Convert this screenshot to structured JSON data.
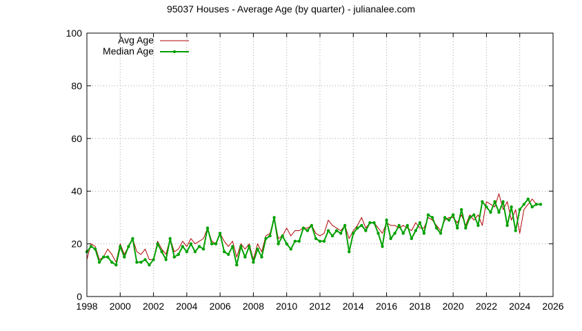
{
  "chart_data": {
    "type": "line",
    "title": "95037 Houses - Average Age (by quarter) - julianalee.com",
    "xlabel": "",
    "ylabel": "",
    "xlim": [
      1998,
      2026
    ],
    "ylim": [
      0,
      100
    ],
    "x_ticks": [
      "1998",
      "2000",
      "2002",
      "2004",
      "2006",
      "2008",
      "2010",
      "2012",
      "2014",
      "2016",
      "2018",
      "2020",
      "2022",
      "2024",
      "2026"
    ],
    "y_ticks": [
      "0",
      "20",
      "40",
      "60",
      "80",
      "100"
    ],
    "grid": true,
    "legend_position": "top-left",
    "series": [
      {
        "name": "Avg Age",
        "color": "#b00000",
        "markers": false,
        "x": [
          1998.0,
          1998.25,
          1998.5,
          1998.75,
          1999.0,
          1999.25,
          1999.5,
          1999.75,
          2000.0,
          2000.25,
          2000.5,
          2000.75,
          2001.0,
          2001.25,
          2001.5,
          2001.75,
          2002.0,
          2002.25,
          2002.5,
          2002.75,
          2003.0,
          2003.25,
          2003.5,
          2003.75,
          2004.0,
          2004.25,
          2004.5,
          2004.75,
          2005.0,
          2005.25,
          2005.5,
          2005.75,
          2006.0,
          2006.25,
          2006.5,
          2006.75,
          2007.0,
          2007.25,
          2007.5,
          2007.75,
          2008.0,
          2008.25,
          2008.5,
          2008.75,
          2009.0,
          2009.25,
          2009.5,
          2009.75,
          2010.0,
          2010.25,
          2010.5,
          2010.75,
          2011.0,
          2011.25,
          2011.5,
          2011.75,
          2012.0,
          2012.25,
          2012.5,
          2012.75,
          2013.0,
          2013.25,
          2013.5,
          2013.75,
          2014.0,
          2014.25,
          2014.5,
          2014.75,
          2015.0,
          2015.25,
          2015.5,
          2015.75,
          2016.0,
          2016.25,
          2016.5,
          2016.75,
          2017.0,
          2017.25,
          2017.5,
          2017.75,
          2018.0,
          2018.25,
          2018.5,
          2018.75,
          2019.0,
          2019.25,
          2019.5,
          2019.75,
          2020.0,
          2020.25,
          2020.5,
          2020.75,
          2021.0,
          2021.25,
          2021.5,
          2021.75,
          2022.0,
          2022.25,
          2022.5,
          2022.75,
          2023.0,
          2023.25,
          2023.5,
          2023.75,
          2024.0,
          2024.25,
          2024.5,
          2024.75,
          2025.0,
          2025.25
        ],
        "values": [
          14,
          20,
          19,
          14,
          15,
          18,
          16,
          13,
          20,
          16,
          19,
          22,
          17,
          16,
          18,
          14,
          14,
          21,
          18,
          16,
          22,
          17,
          18,
          21,
          19,
          22,
          20,
          21,
          22,
          26,
          21,
          20,
          24,
          21,
          19,
          21,
          15,
          20,
          18,
          20,
          14,
          20,
          17,
          23,
          24,
          30,
          22,
          23,
          26,
          23,
          25,
          25,
          26,
          26,
          27,
          24,
          23,
          24,
          29,
          27,
          26,
          25,
          27,
          22,
          25,
          27,
          30,
          26,
          28,
          28,
          26,
          24,
          28,
          27,
          27,
          26,
          27,
          26,
          25,
          28,
          26,
          26,
          30,
          29,
          27,
          25,
          29,
          30,
          30,
          28,
          31,
          27,
          31,
          29,
          31,
          27,
          36,
          35,
          34,
          39,
          33,
          36,
          29,
          33,
          24,
          33,
          35,
          37,
          35,
          35
        ]
      },
      {
        "name": "Median Age",
        "color": "#00a000",
        "markers": true,
        "x": [
          1998.0,
          1998.25,
          1998.5,
          1998.75,
          1999.0,
          1999.25,
          1999.5,
          1999.75,
          2000.0,
          2000.25,
          2000.5,
          2000.75,
          2001.0,
          2001.25,
          2001.5,
          2001.75,
          2002.0,
          2002.25,
          2002.5,
          2002.75,
          2003.0,
          2003.25,
          2003.5,
          2003.75,
          2004.0,
          2004.25,
          2004.5,
          2004.75,
          2005.0,
          2005.25,
          2005.5,
          2005.75,
          2006.0,
          2006.25,
          2006.5,
          2006.75,
          2007.0,
          2007.25,
          2007.5,
          2007.75,
          2008.0,
          2008.25,
          2008.5,
          2008.75,
          2009.0,
          2009.25,
          2009.5,
          2009.75,
          2010.0,
          2010.25,
          2010.5,
          2010.75,
          2011.0,
          2011.25,
          2011.5,
          2011.75,
          2012.0,
          2012.25,
          2012.5,
          2012.75,
          2013.0,
          2013.25,
          2013.5,
          2013.75,
          2014.0,
          2014.25,
          2014.5,
          2014.75,
          2015.0,
          2015.25,
          2015.5,
          2015.75,
          2016.0,
          2016.25,
          2016.5,
          2016.75,
          2017.0,
          2017.25,
          2017.5,
          2017.75,
          2018.0,
          2018.25,
          2018.5,
          2018.75,
          2019.0,
          2019.25,
          2019.5,
          2019.75,
          2020.0,
          2020.25,
          2020.5,
          2020.75,
          2021.0,
          2021.25,
          2021.5,
          2021.75,
          2022.0,
          2022.25,
          2022.5,
          2022.75,
          2023.0,
          2023.25,
          2023.5,
          2023.75,
          2024.0,
          2024.25,
          2024.5,
          2024.75,
          2025.0,
          2025.25
        ],
        "values": [
          17,
          19,
          18,
          13,
          15,
          15,
          13,
          12,
          19,
          15,
          19,
          22,
          13,
          13,
          14,
          12,
          14,
          20,
          17,
          14,
          22,
          15,
          16,
          19,
          17,
          20,
          17,
          19,
          18,
          26,
          20,
          20,
          24,
          17,
          16,
          19,
          12,
          19,
          15,
          19,
          13,
          18,
          15,
          22,
          23,
          30,
          20,
          23,
          20,
          18,
          21,
          21,
          26,
          25,
          27,
          22,
          21,
          21,
          25,
          23,
          25,
          24,
          27,
          17,
          24,
          26,
          27,
          25,
          28,
          28,
          24,
          19,
          29,
          22,
          24,
          27,
          24,
          27,
          22,
          25,
          28,
          24,
          31,
          30,
          26,
          24,
          30,
          29,
          31,
          26,
          33,
          26,
          30,
          31,
          27,
          36,
          34,
          32,
          36,
          32,
          36,
          27,
          34,
          25,
          33,
          35,
          37,
          34,
          35,
          35
        ]
      }
    ]
  }
}
